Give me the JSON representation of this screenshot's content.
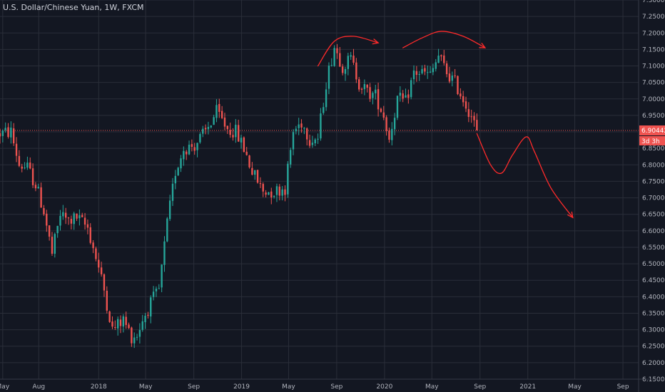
{
  "header": {
    "title": "U.S. Dollar/Chinese Yuan, 1W, FXCM"
  },
  "colors": {
    "background": "#131722",
    "grid": "#2a2e39",
    "axis_text": "#b2b5be",
    "up": "#26a69a",
    "down": "#ef5350",
    "price_line": "#ef5350",
    "annotation": "#ff2a2a"
  },
  "chart_data": {
    "type": "candlestick",
    "symbol": "U.S. Dollar/Chinese Yuan",
    "interval": "1W",
    "source": "FXCM",
    "ylim": [
      6.15,
      7.3
    ],
    "y_ticks": [
      "7.30000",
      "7.25000",
      "7.20000",
      "7.15000",
      "7.10000",
      "7.05000",
      "7.00000",
      "6.95000",
      "6.90000",
      "6.85000",
      "6.80000",
      "6.75000",
      "6.70000",
      "6.65000",
      "6.60000",
      "6.55000",
      "6.50000",
      "6.45000",
      "6.40000",
      "6.35000",
      "6.30000",
      "6.25000",
      "6.20000",
      "6.15000"
    ],
    "x_ticks": [
      "May",
      "Aug",
      "2018",
      "May",
      "Sep",
      "2019",
      "May",
      "Sep",
      "2020",
      "May",
      "Sep",
      "2021",
      "May",
      "Sep"
    ],
    "x_range": [
      "2017-04-24",
      "2021-10-11"
    ],
    "x_tick_dates": [
      "2017-05-01",
      "2017-08-01",
      "2018-01-01",
      "2018-05-01",
      "2018-09-01",
      "2019-01-01",
      "2019-05-01",
      "2019-09-01",
      "2020-01-01",
      "2020-05-01",
      "2020-09-01",
      "2021-01-01",
      "2021-05-01",
      "2021-09-01"
    ],
    "current_price": {
      "value": 6.90442,
      "label": "6.90442",
      "countdown": "3d 3h"
    },
    "grid": true,
    "anchors": [
      [
        "2017-04-24",
        6.895
      ],
      [
        "2017-05-22",
        6.9
      ],
      [
        "2017-06-12",
        6.8
      ],
      [
        "2017-07-03",
        6.79
      ],
      [
        "2017-07-24",
        6.74
      ],
      [
        "2017-08-14",
        6.66
      ],
      [
        "2017-09-04",
        6.53
      ],
      [
        "2017-09-25",
        6.65
      ],
      [
        "2017-10-16",
        6.63
      ],
      [
        "2017-11-06",
        6.64
      ],
      [
        "2017-12-04",
        6.61
      ],
      [
        "2017-12-25",
        6.52
      ],
      [
        "2018-01-15",
        6.42
      ],
      [
        "2018-02-05",
        6.3
      ],
      [
        "2018-03-05",
        6.33
      ],
      [
        "2018-03-26",
        6.28
      ],
      [
        "2018-04-09",
        6.285
      ],
      [
        "2018-04-23",
        6.33
      ],
      [
        "2018-05-14",
        6.38
      ],
      [
        "2018-06-04",
        6.42
      ],
      [
        "2018-06-25",
        6.62
      ],
      [
        "2018-07-16",
        6.78
      ],
      [
        "2018-08-06",
        6.85
      ],
      [
        "2018-09-03",
        6.86
      ],
      [
        "2018-10-01",
        6.9
      ],
      [
        "2018-10-29",
        6.96
      ],
      [
        "2018-11-26",
        6.91
      ],
      [
        "2018-12-17",
        6.9
      ],
      [
        "2019-01-07",
        6.85
      ],
      [
        "2019-01-28",
        6.78
      ],
      [
        "2019-02-25",
        6.72
      ],
      [
        "2019-03-25",
        6.72
      ],
      [
        "2019-04-22",
        6.73
      ],
      [
        "2019-05-13",
        6.9
      ],
      [
        "2019-06-03",
        6.93
      ],
      [
        "2019-06-24",
        6.88
      ],
      [
        "2019-07-15",
        6.88
      ],
      [
        "2019-08-05",
        7.05
      ],
      [
        "2019-08-26",
        7.16
      ],
      [
        "2019-09-16",
        7.1
      ],
      [
        "2019-10-07",
        7.12
      ],
      [
        "2019-10-28",
        7.05
      ],
      [
        "2019-11-18",
        7.02
      ],
      [
        "2019-12-09",
        7.01
      ],
      [
        "2019-12-30",
        6.95
      ],
      [
        "2020-01-13",
        6.88
      ],
      [
        "2020-02-03",
        7.0
      ],
      [
        "2020-02-24",
        6.99
      ],
      [
        "2020-03-16",
        7.08
      ],
      [
        "2020-04-06",
        7.08
      ],
      [
        "2020-04-27",
        7.07
      ],
      [
        "2020-05-18",
        7.13
      ],
      [
        "2020-06-08",
        7.08
      ],
      [
        "2020-06-29",
        7.05
      ],
      [
        "2020-07-20",
        7.0
      ],
      [
        "2020-08-10",
        6.95
      ],
      [
        "2020-08-24",
        6.9
      ]
    ],
    "annotations": [
      {
        "type": "arrow",
        "description": "arch near first top",
        "points": [
          [
            "2019-07-15",
            7.1
          ],
          [
            "2019-08-26",
            7.175
          ],
          [
            "2019-10-14",
            7.19
          ],
          [
            "2019-12-16",
            7.17
          ]
        ]
      },
      {
        "type": "arrow",
        "description": "arch near second top",
        "points": [
          [
            "2020-02-17",
            7.155
          ],
          [
            "2020-04-06",
            7.185
          ],
          [
            "2020-05-25",
            7.205
          ],
          [
            "2020-07-20",
            7.19
          ],
          [
            "2020-09-14",
            7.155
          ]
        ]
      },
      {
        "type": "arrow",
        "description": "projected path down",
        "points": [
          [
            "2020-08-24",
            6.895
          ],
          [
            "2020-09-28",
            6.8
          ],
          [
            "2020-10-26",
            6.775
          ],
          [
            "2020-11-23",
            6.83
          ],
          [
            "2020-12-28",
            6.885
          ],
          [
            "2021-01-18",
            6.84
          ],
          [
            "2021-03-01",
            6.73
          ],
          [
            "2021-04-26",
            6.64
          ]
        ]
      }
    ]
  }
}
